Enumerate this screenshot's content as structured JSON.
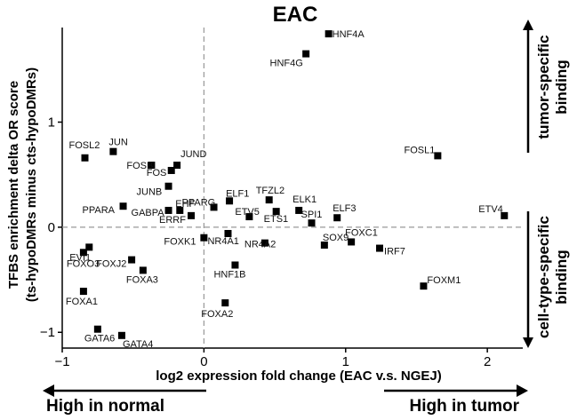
{
  "chart_data": {
    "type": "scatter",
    "title": "EAC",
    "xlabel": "log2 expression fold change (EAC v.s. NGEJ)",
    "ylabel": "TFBS enrichment delta OR score",
    "ylabel2": "(ts-hypoDMRs minus cts-hypoDMRs)",
    "xlim": [
      -1.0,
      2.25
    ],
    "ylim": [
      -1.15,
      1.9
    ],
    "xticks": [
      -1,
      0,
      1,
      2
    ],
    "yticks": [
      -1,
      0,
      1
    ],
    "x_reference": 0,
    "y_reference": 0,
    "side_labels": {
      "top_line1": "tumor-specific",
      "top_line2": "binding",
      "bottom_line1": "cell-type-specific",
      "bottom_line2": "binding"
    },
    "bottom_labels": {
      "left": "High in normal",
      "right": "High in tumor"
    },
    "points": [
      {
        "label": "HNF4A",
        "x": 0.88,
        "y": 1.84
      },
      {
        "label": "HNF4G",
        "x": 0.72,
        "y": 1.65
      },
      {
        "label": "FOSL1",
        "x": 1.65,
        "y": 0.68
      },
      {
        "label": "FOSL2",
        "x": -0.84,
        "y": 0.66
      },
      {
        "label": "JUN",
        "x": -0.64,
        "y": 0.72
      },
      {
        "label": "FOSB",
        "x": -0.37,
        "y": 0.59
      },
      {
        "label": "JUND",
        "x": -0.19,
        "y": 0.59
      },
      {
        "label": "FOS",
        "x": -0.23,
        "y": 0.54
      },
      {
        "label": "JUNB",
        "x": -0.25,
        "y": 0.39
      },
      {
        "label": "ETV4",
        "x": 2.12,
        "y": 0.11
      },
      {
        "label": "PPARA",
        "x": -0.57,
        "y": 0.2
      },
      {
        "label": "GABPA",
        "x": -0.25,
        "y": 0.16
      },
      {
        "label": "EHF",
        "x": -0.17,
        "y": 0.16
      },
      {
        "label": "ERRF",
        "x": -0.09,
        "y": 0.11
      },
      {
        "label": "PPARG",
        "x": 0.07,
        "y": 0.19
      },
      {
        "label": "ELF1",
        "x": 0.18,
        "y": 0.25
      },
      {
        "label": "TFZL2",
        "x": 0.46,
        "y": 0.26
      },
      {
        "label": "ELK1",
        "x": 0.67,
        "y": 0.16
      },
      {
        "label": "ELF3",
        "x": 0.94,
        "y": 0.09
      },
      {
        "label": "ETV5",
        "x": 0.32,
        "y": 0.1
      },
      {
        "label": "ETS1",
        "x": 0.51,
        "y": 0.15
      },
      {
        "label": "SPI1",
        "x": 0.76,
        "y": 0.04
      },
      {
        "label": "FOXO3",
        "x": -0.85,
        "y": -0.24
      },
      {
        "label": "EVI1",
        "x": -0.81,
        "y": -0.19
      },
      {
        "label": "FOXJ2",
        "x": -0.51,
        "y": -0.31
      },
      {
        "label": "FOXA3",
        "x": -0.43,
        "y": -0.41
      },
      {
        "label": "FOXK1",
        "x": 0.0,
        "y": -0.1
      },
      {
        "label": "NR4A1",
        "x": 0.17,
        "y": -0.06
      },
      {
        "label": "NR4A2",
        "x": 0.43,
        "y": -0.15
      },
      {
        "label": "HNF1B",
        "x": 0.22,
        "y": -0.36
      },
      {
        "label": "SOX9",
        "x": 0.85,
        "y": -0.17
      },
      {
        "label": "FOXC1",
        "x": 1.04,
        "y": -0.14
      },
      {
        "label": "IRF7",
        "x": 1.24,
        "y": -0.2
      },
      {
        "label": "FOXM1",
        "x": 1.55,
        "y": -0.56
      },
      {
        "label": "FOXA1",
        "x": -0.85,
        "y": -0.61
      },
      {
        "label": "FOXA2",
        "x": 0.15,
        "y": -0.72
      },
      {
        "label": "GATA6",
        "x": -0.75,
        "y": -0.97
      },
      {
        "label": "GATA4",
        "x": -0.58,
        "y": -1.03
      }
    ]
  },
  "colors": {
    "points": "#000000",
    "reference_lines": "#999999"
  }
}
